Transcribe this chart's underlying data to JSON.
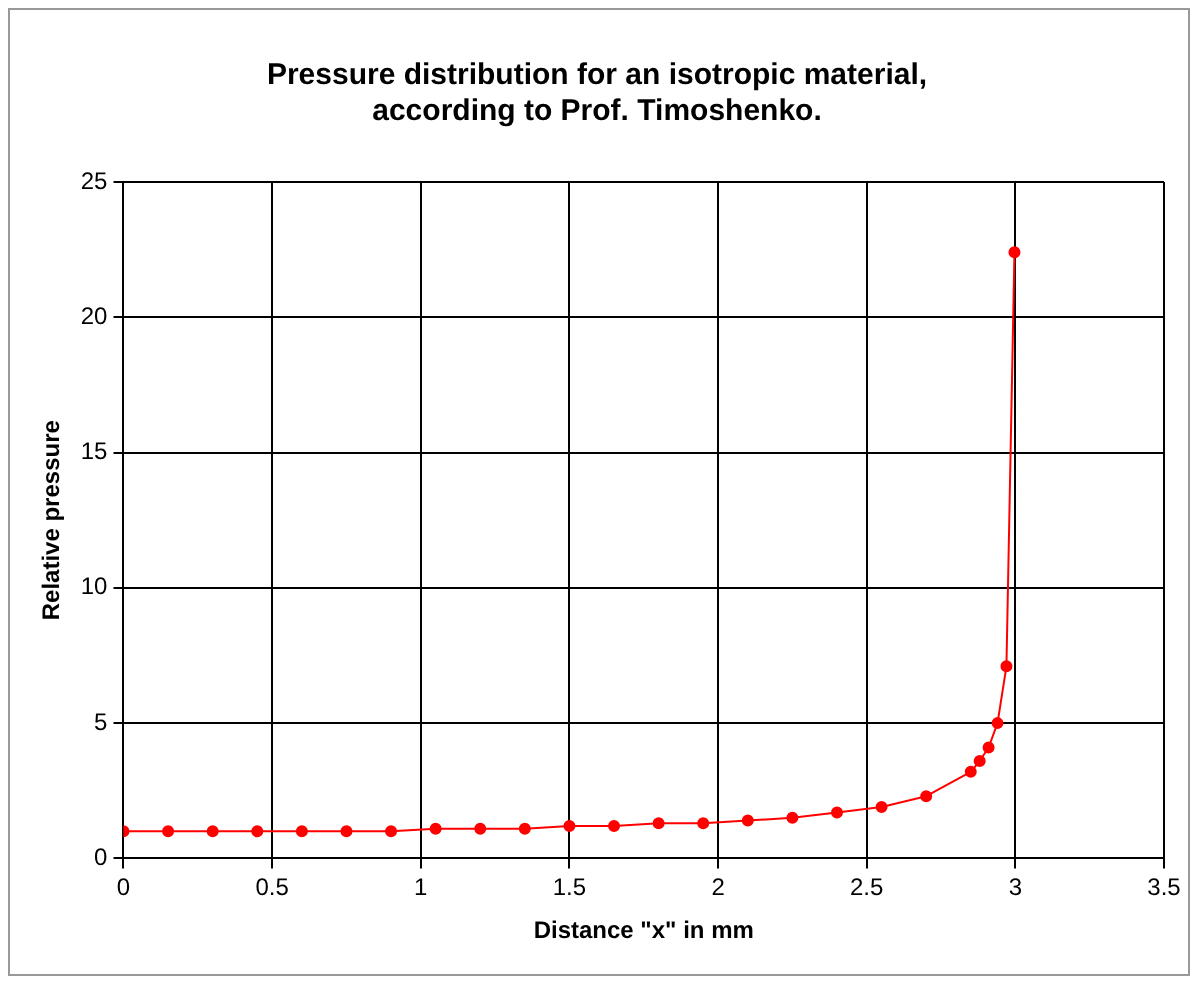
{
  "chart_data": {
    "type": "line",
    "title": "Pressure distribution for an isotropic material, according to Prof. Timoshenko.",
    "xlabel": "Distance \"x\" in mm",
    "ylabel": "Relative pressure",
    "x": [
      0,
      0.15,
      0.3,
      0.45,
      0.6,
      0.75,
      0.9,
      1.05,
      1.2,
      1.35,
      1.5,
      1.65,
      1.8,
      1.95,
      2.1,
      2.25,
      2.4,
      2.55,
      2.7,
      2.85,
      2.88,
      2.91,
      2.94,
      2.97,
      2.997
    ],
    "series": [
      {
        "color": "#ff0000",
        "values": [
          1,
          1,
          1,
          1,
          1,
          1,
          1,
          1.1,
          1.1,
          1.1,
          1.2,
          1.2,
          1.3,
          1.3,
          1.4,
          1.5,
          1.7,
          1.9,
          2.3,
          3.2,
          3.6,
          4.1,
          5,
          7.1,
          22.4
        ]
      }
    ],
    "xlim": [
      0,
      3.5
    ],
    "xticks": [
      0,
      0.5,
      1,
      1.5,
      2,
      2.5,
      3,
      3.5
    ],
    "ylim": [
      0,
      25
    ],
    "yticks": [
      0,
      5,
      10,
      15,
      20,
      25
    ],
    "grid": true,
    "legend": false,
    "marker": "circle",
    "line_style": "solid"
  }
}
